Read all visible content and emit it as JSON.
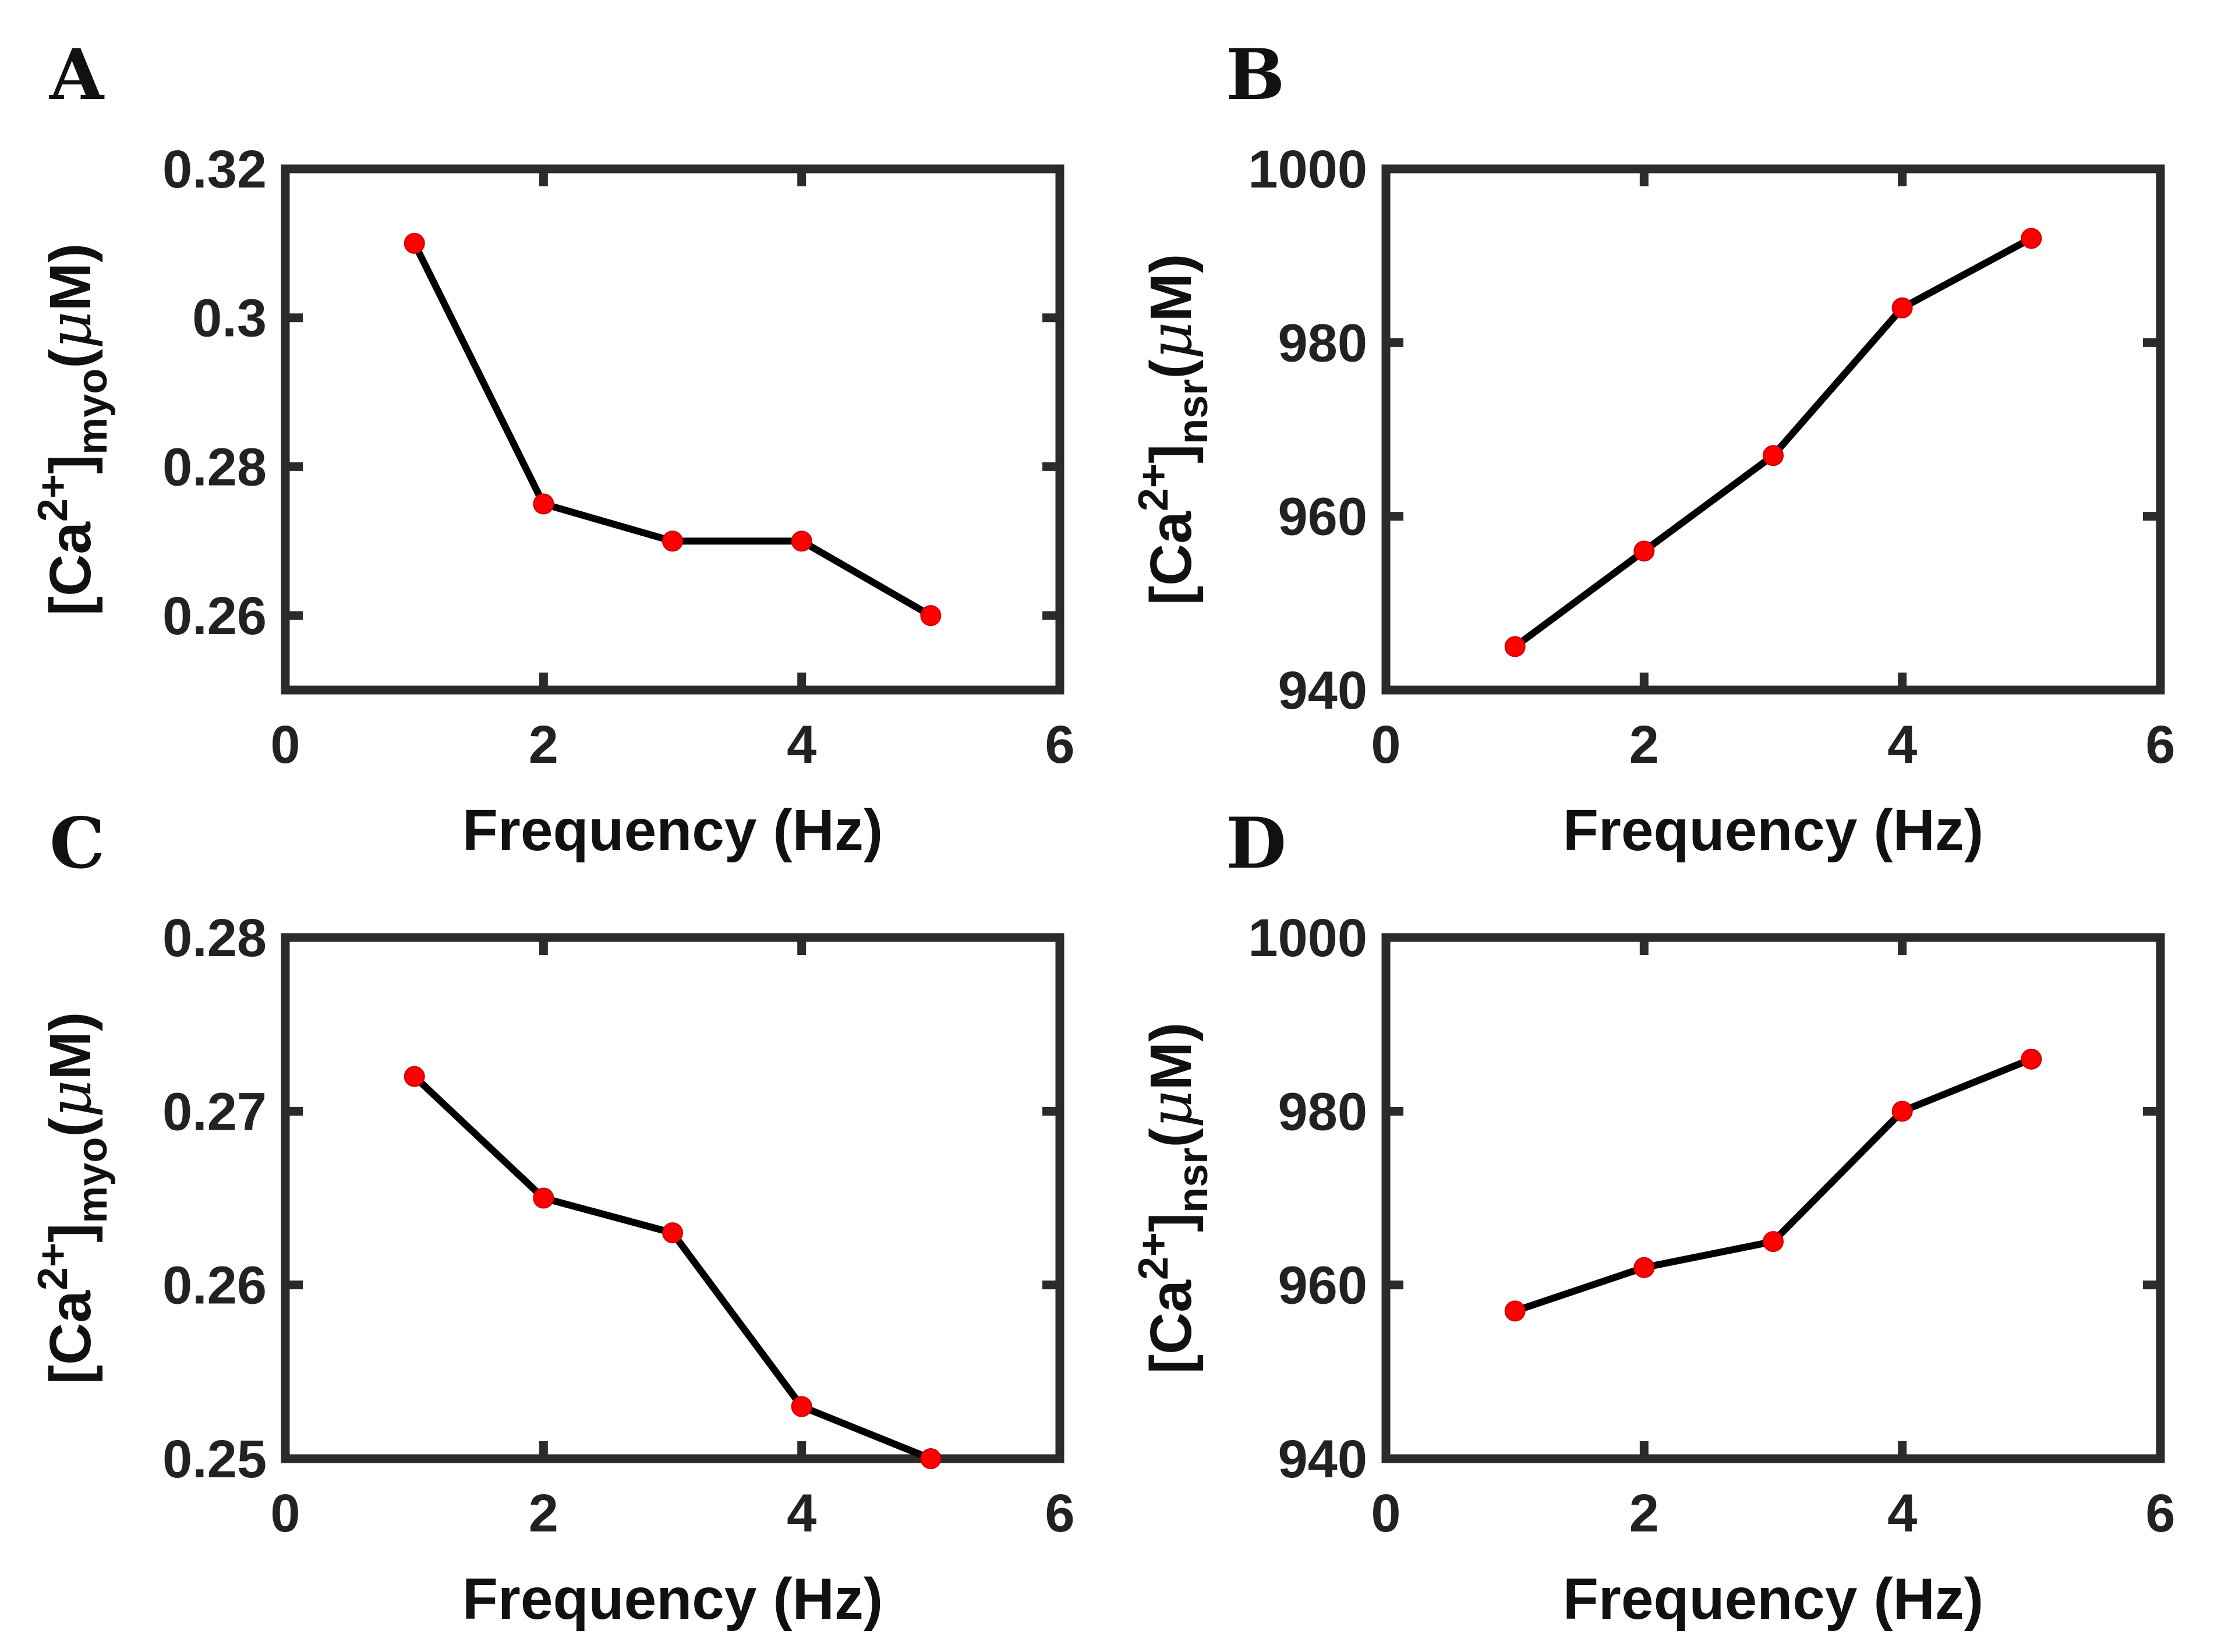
{
  "chart_data": [
    {
      "panel": "A",
      "type": "line",
      "x": [
        1,
        2,
        3,
        4,
        5
      ],
      "y": [
        0.31,
        0.275,
        0.27,
        0.27,
        0.26
      ],
      "xlim": [
        0,
        6
      ],
      "ylim": [
        0.25,
        0.32
      ],
      "xticks": [
        0,
        2,
        4,
        6
      ],
      "xtick_labels": [
        "0",
        "2",
        "4",
        "6"
      ],
      "yticks": [
        0.26,
        0.28,
        0.3,
        0.32
      ],
      "ytick_labels": [
        "0.26",
        "0.28",
        "0.3",
        "0.32"
      ],
      "xlabel": "Frequency (Hz)",
      "ylabel": {
        "prefix": "[Ca",
        "sup": "2+",
        "bracket": "]",
        "sub": "myo",
        "unit_open": "(",
        "mu": "μ",
        "unit_rest": "M)"
      },
      "line_color": "#000000",
      "marker_color": "#ff0000",
      "grid": false
    },
    {
      "panel": "B",
      "type": "line",
      "x": [
        1,
        2,
        3,
        4,
        5
      ],
      "y": [
        945,
        956,
        967,
        984,
        992
      ],
      "xlim": [
        0,
        6
      ],
      "ylim": [
        940,
        1000
      ],
      "xticks": [
        0,
        2,
        4,
        6
      ],
      "xtick_labels": [
        "0",
        "2",
        "4",
        "6"
      ],
      "yticks": [
        940,
        960,
        980,
        1000
      ],
      "ytick_labels": [
        "940",
        "960",
        "980",
        "1000"
      ],
      "xlabel": "Frequency (Hz)",
      "ylabel": {
        "prefix": "[Ca",
        "sup": "2+",
        "bracket": "]",
        "sub": "nsr",
        "unit_open": "(",
        "mu": "μ",
        "unit_rest": "M)"
      },
      "line_color": "#000000",
      "marker_color": "#ff0000",
      "grid": false
    },
    {
      "panel": "C",
      "type": "line",
      "x": [
        1,
        2,
        3,
        4,
        5
      ],
      "y": [
        0.272,
        0.265,
        0.263,
        0.253,
        0.25
      ],
      "xlim": [
        0,
        6
      ],
      "ylim": [
        0.25,
        0.28
      ],
      "xticks": [
        0,
        2,
        4,
        6
      ],
      "xtick_labels": [
        "0",
        "2",
        "4",
        "6"
      ],
      "yticks": [
        0.25,
        0.26,
        0.27,
        0.28
      ],
      "ytick_labels": [
        "0.25",
        "0.26",
        "0.27",
        "0.28"
      ],
      "xlabel": "Frequency (Hz)",
      "ylabel": {
        "prefix": "[Ca",
        "sup": "2+",
        "bracket": "]",
        "sub": "myo",
        "unit_open": "(",
        "mu": "μ",
        "unit_rest": "M)"
      },
      "line_color": "#000000",
      "marker_color": "#ff0000",
      "grid": false
    },
    {
      "panel": "D",
      "type": "line",
      "x": [
        1,
        2,
        3,
        4,
        5
      ],
      "y": [
        957,
        962,
        965,
        980,
        986
      ],
      "xlim": [
        0,
        6
      ],
      "ylim": [
        940,
        1000
      ],
      "xticks": [
        0,
        2,
        4,
        6
      ],
      "xtick_labels": [
        "0",
        "2",
        "4",
        "6"
      ],
      "yticks": [
        940,
        960,
        980,
        1000
      ],
      "ytick_labels": [
        "940",
        "960",
        "980",
        "1000"
      ],
      "xlabel": "Frequency (Hz)",
      "ylabel": {
        "prefix": "[Ca",
        "sup": "2+",
        "bracket": "]",
        "sub": "nsr",
        "unit_open": "(",
        "mu": "μ",
        "unit_rest": "M)"
      },
      "line_color": "#000000",
      "marker_color": "#ff0000",
      "grid": false
    }
  ]
}
